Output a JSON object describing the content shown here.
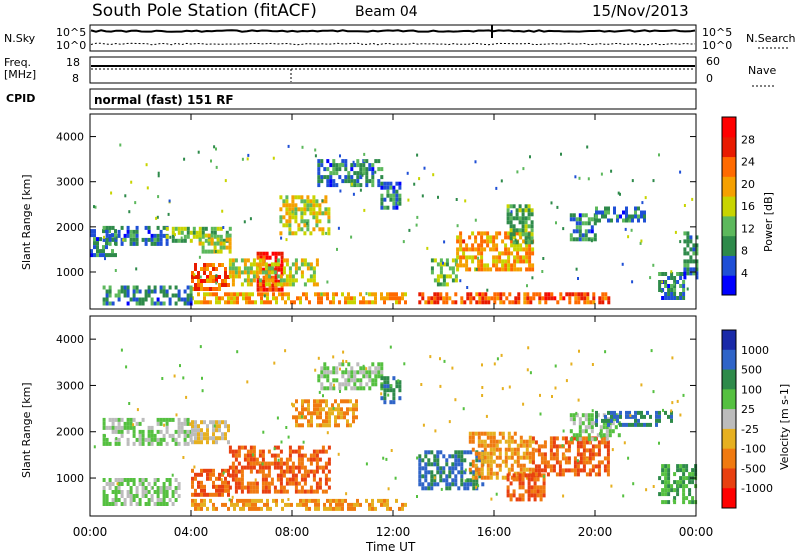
{
  "header": {
    "station": "South Pole Station (fitACF)",
    "beam": "Beam 04",
    "date": "15/Nov/2013"
  },
  "top_panels": {
    "nsky_label": "N.Sky",
    "nsky_ticks": [
      "10^5",
      "10^0"
    ],
    "nsearch_label": "N.Search",
    "nsearch_ticks": [
      "10^5",
      "10^0"
    ],
    "freq_label": "Freq.",
    "freq_unit": "[MHz]",
    "freq_ticks": [
      "18",
      "8"
    ],
    "nave_label": "Nave",
    "nave_ticks": [
      "60",
      "0"
    ],
    "cpid_label": "CPID",
    "cpid_value": "normal (fast) 151 RF"
  },
  "colors": {
    "power_scale": [
      "#0000ff",
      "#1f4fd6",
      "#2e8a4a",
      "#5cb85c",
      "#c8d400",
      "#f5a000",
      "#ff6a00",
      "#e81a00",
      "#ff0000"
    ],
    "velocity_scale": [
      "#1a2aa8",
      "#2f64c8",
      "#2e8a4a",
      "#55c040",
      "#bcbcbc",
      "#e6b020",
      "#f07a10",
      "#e84010",
      "#ff0000"
    ]
  },
  "chart_data": [
    {
      "type": "heatmap",
      "panel": "power",
      "ylabel": "Slant Range [km]",
      "yticks": [
        "4000",
        "3000",
        "2000",
        "1000"
      ],
      "ylim": [
        180,
        4500
      ],
      "colorbar_label": "Power [dB]",
      "colorbar_ticks": [
        "28",
        "24",
        "20",
        "16",
        "12",
        "8",
        "4"
      ],
      "colorbar_range": [
        0,
        32
      ],
      "series": [
        {
          "values": [
            [
              0.0,
              1.0,
              1650,
              300,
              8
            ],
            [
              0.5,
              3.0,
              1800,
              220,
              8
            ],
            [
              3.0,
              5.5,
              1850,
              150,
              12
            ],
            [
              4.3,
              5.5,
              1650,
              200,
              16
            ],
            [
              4.0,
              5.5,
              900,
              300,
              24
            ],
            [
              6.6,
              7.6,
              1050,
              400,
              28
            ],
            [
              5.5,
              9.0,
              1000,
              300,
              16
            ],
            [
              4.0,
              12.5,
              450,
              100,
              20
            ],
            [
              7.5,
              9.5,
              2300,
              400,
              16
            ],
            [
              9.0,
              11.5,
              3200,
              300,
              8
            ],
            [
              11.5,
              12.3,
              2700,
              300,
              8
            ],
            [
              13.5,
              14.5,
              1000,
              300,
              12
            ],
            [
              14.5,
              17.5,
              1500,
              400,
              20
            ],
            [
              16.5,
              17.5,
              2100,
              400,
              12
            ],
            [
              19.0,
              20.0,
              2000,
              300,
              8
            ],
            [
              20.0,
              22.0,
              2300,
              150,
              8
            ],
            [
              13.0,
              20.5,
              450,
              100,
              24
            ],
            [
              22.5,
              23.5,
              700,
              300,
              8
            ],
            [
              23.5,
              24.0,
              1400,
              500,
              8
            ],
            [
              0.5,
              4.0,
              500,
              200,
              8
            ]
          ]
        }
      ],
      "x": [
        "00:00",
        "04:00",
        "08:00",
        "12:00",
        "16:00",
        "20:00",
        "00:00"
      ]
    },
    {
      "type": "heatmap",
      "panel": "velocity",
      "xlabel": "Time UT",
      "ylabel": "Slant Range [km]",
      "yticks": [
        "4000",
        "3000",
        "2000",
        "1000"
      ],
      "ylim": [
        180,
        4500
      ],
      "colorbar_label": "Velocity [m s-1]",
      "colorbar_ticks": [
        "1000",
        "500",
        "100",
        "25",
        "-25",
        "-100",
        "-500",
        "-1000"
      ],
      "series": [
        {
          "values": [
            [
              0.5,
              4.0,
              2000,
              300,
              25
            ],
            [
              4.0,
              5.5,
              2000,
              250,
              -25
            ],
            [
              4.0,
              5.5,
              900,
              300,
              -500
            ],
            [
              5.5,
              9.5,
              1200,
              500,
              -500
            ],
            [
              4.0,
              12.5,
              450,
              100,
              -100
            ],
            [
              8.0,
              10.5,
              2400,
              300,
              -100
            ],
            [
              9.0,
              11.5,
              3200,
              300,
              25
            ],
            [
              11.5,
              12.3,
              2900,
              300,
              500
            ],
            [
              13.0,
              15.5,
              1200,
              400,
              500
            ],
            [
              15.0,
              17.5,
              1500,
              500,
              -100
            ],
            [
              16.5,
              18.0,
              800,
              300,
              -500
            ],
            [
              17.5,
              20.5,
              1500,
              400,
              -500
            ],
            [
              19.0,
              21.0,
              2100,
              300,
              25
            ],
            [
              20.0,
              23.0,
              2300,
              150,
              500
            ],
            [
              22.5,
              24.0,
              900,
              400,
              100
            ],
            [
              0.5,
              3.5,
              700,
              300,
              25
            ]
          ]
        }
      ],
      "x": [
        "00:00",
        "04:00",
        "08:00",
        "12:00",
        "16:00",
        "20:00",
        "00:00"
      ]
    }
  ]
}
